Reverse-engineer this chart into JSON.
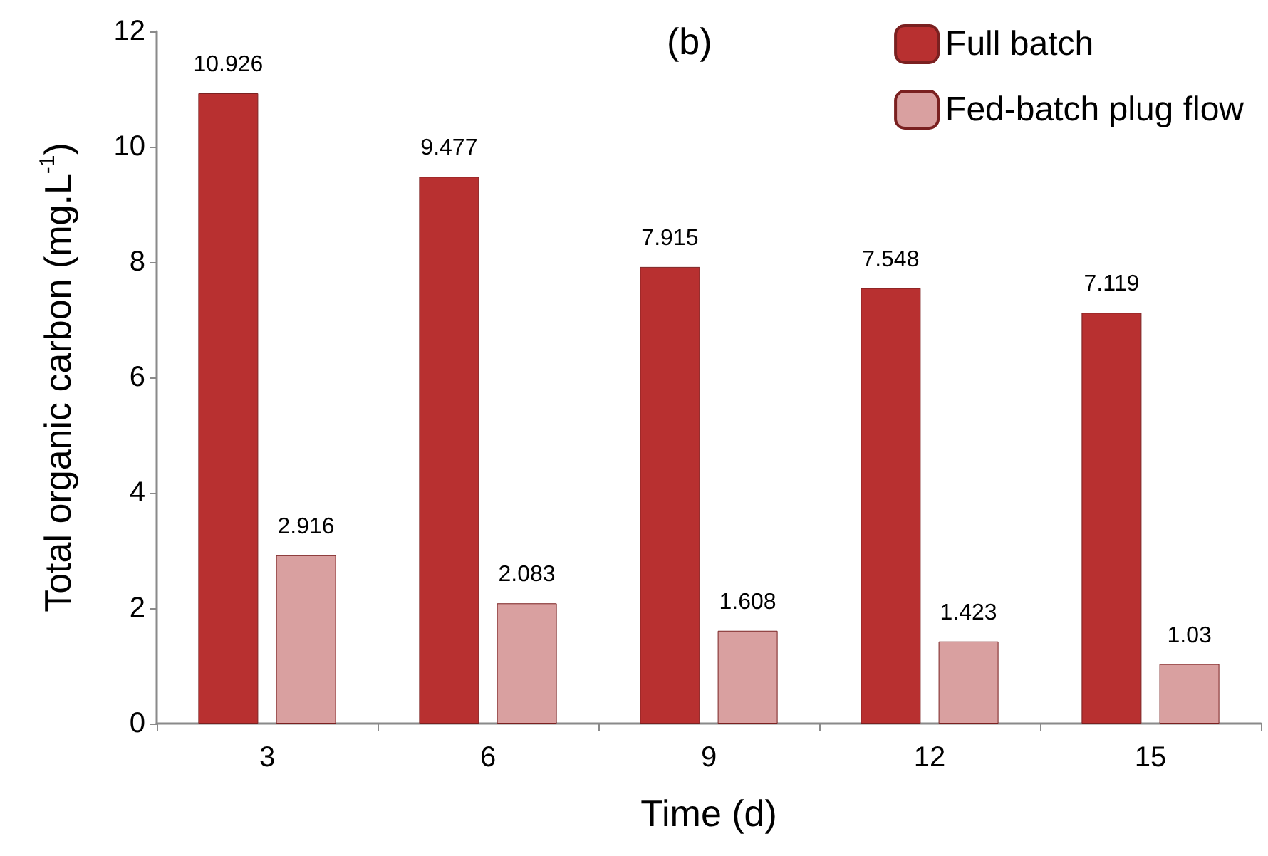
{
  "chart_data": {
    "type": "bar",
    "xlabel": "Time (d)",
    "ylabel": "Total organic carbon (mg.L$^{-1}$)",
    "annotations": [
      "(b)"
    ],
    "categories": [
      "3",
      "6",
      "9",
      "12",
      "15"
    ],
    "series": [
      {
        "name": "Full batch",
        "color": "#b83030",
        "values": [
          10.926,
          9.477,
          7.915,
          7.548,
          7.119
        ]
      },
      {
        "name": "Fed-batch plug flow",
        "color": "#d9a0a0",
        "values": [
          2.916,
          2.083,
          1.608,
          1.423,
          1.03
        ]
      }
    ],
    "ylim": [
      0,
      12
    ],
    "yticks": [
      0,
      2,
      4,
      6,
      8,
      10,
      12
    ],
    "grid": false,
    "legend": "top right",
    "data_labels": true
  }
}
